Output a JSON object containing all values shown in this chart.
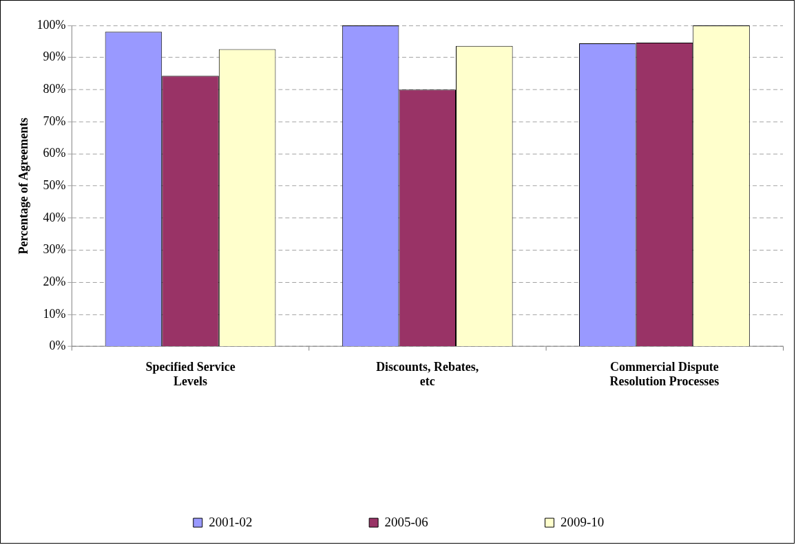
{
  "chart_data": {
    "type": "bar",
    "ylabel": "Percentage of Agreements",
    "categories": [
      "Specified Service Levels",
      "Discounts, Rebates, etc",
      "Commercial Dispute Resolution Processes"
    ],
    "series": [
      {
        "name": "2001-02",
        "color": "#9999ff",
        "values": [
          98,
          100,
          94.4
        ]
      },
      {
        "name": "2005-06",
        "color": "#993366",
        "values": [
          84.3,
          80,
          94.6
        ]
      },
      {
        "name": "2009-10",
        "color": "#ffffcc",
        "values": [
          92.6,
          93.6,
          100
        ]
      }
    ],
    "ylim": [
      0,
      100
    ],
    "yticks": [
      {
        "value": 0,
        "label": "0%"
      },
      {
        "value": 10,
        "label": "10%"
      },
      {
        "value": 20,
        "label": "20%"
      },
      {
        "value": 30,
        "label": "30%"
      },
      {
        "value": 40,
        "label": "40%"
      },
      {
        "value": 50,
        "label": "50%"
      },
      {
        "value": 60,
        "label": "60%"
      },
      {
        "value": 70,
        "label": "70%"
      },
      {
        "value": 80,
        "label": "80%"
      },
      {
        "value": 90,
        "label": "90%"
      },
      {
        "value": 100,
        "label": "100%"
      }
    ],
    "grid": "y",
    "legend": "bottom"
  }
}
